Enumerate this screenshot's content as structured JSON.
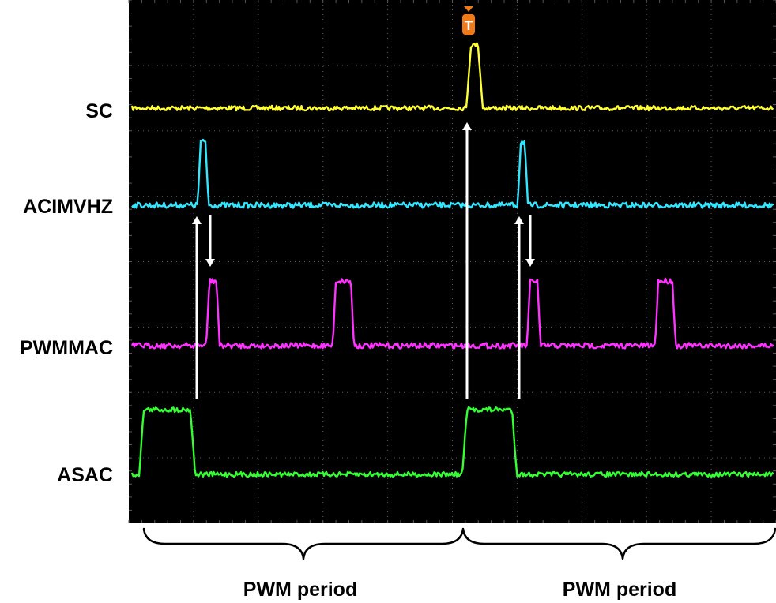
{
  "channels": [
    {
      "label": "SC",
      "color": "#ffff33"
    },
    {
      "label": "ACIMVHZ",
      "color": "#33e6ff"
    },
    {
      "label": "PWMMAC",
      "color": "#ff33ff"
    },
    {
      "label": "ASAC",
      "color": "#33ff33"
    }
  ],
  "trigger": {
    "glyph": "T",
    "color": "#f07a1a"
  },
  "periods": [
    {
      "label": "PWM period"
    },
    {
      "label": "PWM period"
    }
  ],
  "colors": {
    "screen": "#000000",
    "grid": "#5a5a5a",
    "arrow": "#ffffff",
    "brace": "#000000"
  }
}
